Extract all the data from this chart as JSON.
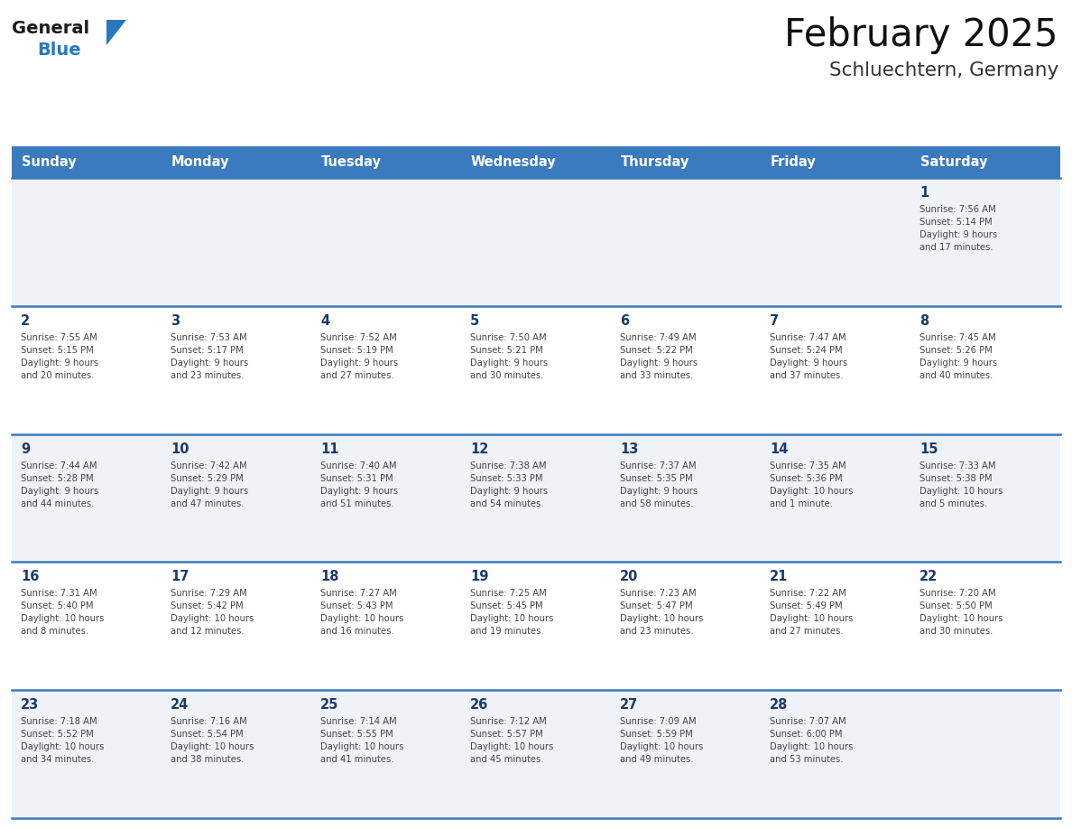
{
  "title": "February 2025",
  "subtitle": "Schluechtern, Germany",
  "days_of_week": [
    "Sunday",
    "Monday",
    "Tuesday",
    "Wednesday",
    "Thursday",
    "Friday",
    "Saturday"
  ],
  "header_bg": "#3a7abf",
  "header_text": "#ffffff",
  "row_bg_odd": "#eff3f8",
  "row_bg_even": "#ffffff",
  "grid_line_color": "#3a7abf",
  "text_color": "#444444",
  "day_num_color": "#1a3a6b",
  "logo_general_color": "#1a1a1a",
  "logo_blue_color": "#2878be",
  "calendar_data": [
    [
      {
        "day": null,
        "info": null
      },
      {
        "day": null,
        "info": null
      },
      {
        "day": null,
        "info": null
      },
      {
        "day": null,
        "info": null
      },
      {
        "day": null,
        "info": null
      },
      {
        "day": null,
        "info": null
      },
      {
        "day": 1,
        "info": "Sunrise: 7:56 AM\nSunset: 5:14 PM\nDaylight: 9 hours\nand 17 minutes."
      }
    ],
    [
      {
        "day": 2,
        "info": "Sunrise: 7:55 AM\nSunset: 5:15 PM\nDaylight: 9 hours\nand 20 minutes."
      },
      {
        "day": 3,
        "info": "Sunrise: 7:53 AM\nSunset: 5:17 PM\nDaylight: 9 hours\nand 23 minutes."
      },
      {
        "day": 4,
        "info": "Sunrise: 7:52 AM\nSunset: 5:19 PM\nDaylight: 9 hours\nand 27 minutes."
      },
      {
        "day": 5,
        "info": "Sunrise: 7:50 AM\nSunset: 5:21 PM\nDaylight: 9 hours\nand 30 minutes."
      },
      {
        "day": 6,
        "info": "Sunrise: 7:49 AM\nSunset: 5:22 PM\nDaylight: 9 hours\nand 33 minutes."
      },
      {
        "day": 7,
        "info": "Sunrise: 7:47 AM\nSunset: 5:24 PM\nDaylight: 9 hours\nand 37 minutes."
      },
      {
        "day": 8,
        "info": "Sunrise: 7:45 AM\nSunset: 5:26 PM\nDaylight: 9 hours\nand 40 minutes."
      }
    ],
    [
      {
        "day": 9,
        "info": "Sunrise: 7:44 AM\nSunset: 5:28 PM\nDaylight: 9 hours\nand 44 minutes."
      },
      {
        "day": 10,
        "info": "Sunrise: 7:42 AM\nSunset: 5:29 PM\nDaylight: 9 hours\nand 47 minutes."
      },
      {
        "day": 11,
        "info": "Sunrise: 7:40 AM\nSunset: 5:31 PM\nDaylight: 9 hours\nand 51 minutes."
      },
      {
        "day": 12,
        "info": "Sunrise: 7:38 AM\nSunset: 5:33 PM\nDaylight: 9 hours\nand 54 minutes."
      },
      {
        "day": 13,
        "info": "Sunrise: 7:37 AM\nSunset: 5:35 PM\nDaylight: 9 hours\nand 58 minutes."
      },
      {
        "day": 14,
        "info": "Sunrise: 7:35 AM\nSunset: 5:36 PM\nDaylight: 10 hours\nand 1 minute."
      },
      {
        "day": 15,
        "info": "Sunrise: 7:33 AM\nSunset: 5:38 PM\nDaylight: 10 hours\nand 5 minutes."
      }
    ],
    [
      {
        "day": 16,
        "info": "Sunrise: 7:31 AM\nSunset: 5:40 PM\nDaylight: 10 hours\nand 8 minutes."
      },
      {
        "day": 17,
        "info": "Sunrise: 7:29 AM\nSunset: 5:42 PM\nDaylight: 10 hours\nand 12 minutes."
      },
      {
        "day": 18,
        "info": "Sunrise: 7:27 AM\nSunset: 5:43 PM\nDaylight: 10 hours\nand 16 minutes."
      },
      {
        "day": 19,
        "info": "Sunrise: 7:25 AM\nSunset: 5:45 PM\nDaylight: 10 hours\nand 19 minutes."
      },
      {
        "day": 20,
        "info": "Sunrise: 7:23 AM\nSunset: 5:47 PM\nDaylight: 10 hours\nand 23 minutes."
      },
      {
        "day": 21,
        "info": "Sunrise: 7:22 AM\nSunset: 5:49 PM\nDaylight: 10 hours\nand 27 minutes."
      },
      {
        "day": 22,
        "info": "Sunrise: 7:20 AM\nSunset: 5:50 PM\nDaylight: 10 hours\nand 30 minutes."
      }
    ],
    [
      {
        "day": 23,
        "info": "Sunrise: 7:18 AM\nSunset: 5:52 PM\nDaylight: 10 hours\nand 34 minutes."
      },
      {
        "day": 24,
        "info": "Sunrise: 7:16 AM\nSunset: 5:54 PM\nDaylight: 10 hours\nand 38 minutes."
      },
      {
        "day": 25,
        "info": "Sunrise: 7:14 AM\nSunset: 5:55 PM\nDaylight: 10 hours\nand 41 minutes."
      },
      {
        "day": 26,
        "info": "Sunrise: 7:12 AM\nSunset: 5:57 PM\nDaylight: 10 hours\nand 45 minutes."
      },
      {
        "day": 27,
        "info": "Sunrise: 7:09 AM\nSunset: 5:59 PM\nDaylight: 10 hours\nand 49 minutes."
      },
      {
        "day": 28,
        "info": "Sunrise: 7:07 AM\nSunset: 6:00 PM\nDaylight: 10 hours\nand 53 minutes."
      },
      {
        "day": null,
        "info": null
      }
    ]
  ]
}
